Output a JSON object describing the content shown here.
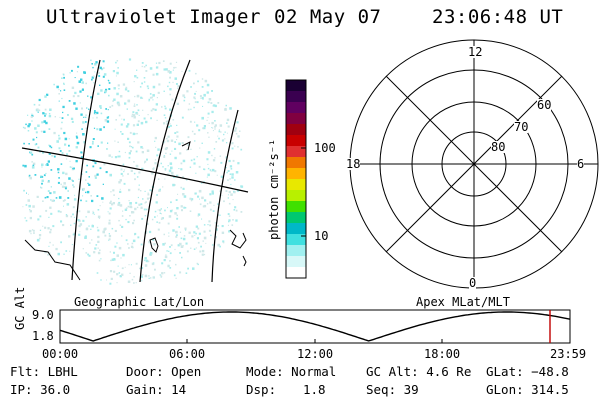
{
  "header": {
    "instrument": "Ultraviolet Imager",
    "date": "02 May 07",
    "time": "23:06:48 UT"
  },
  "colorbar": {
    "units_label": "photon cm⁻²s⁻¹",
    "ticks": [
      "100",
      "10"
    ],
    "colors": [
      "#1a0033",
      "#3a0050",
      "#600060",
      "#800040",
      "#a00010",
      "#c80000",
      "#e03030",
      "#f07800",
      "#ffb400",
      "#e8e800",
      "#b8f000",
      "#40e000",
      "#00c870",
      "#00b8c8",
      "#40e0e0",
      "#a0f0f0",
      "#d8f8f8",
      "#ffffff"
    ]
  },
  "map_left": {
    "caption": "Geographic Lat/Lon",
    "point_color": "#40d0e0"
  },
  "polar_right": {
    "caption": "Apex MLat/MLT",
    "mlt_labels": {
      "top": "12",
      "left": "18",
      "right": "6",
      "bottom": "0"
    },
    "mlat_labels": [
      "60",
      "70",
      "80"
    ]
  },
  "altitude_strip": {
    "ylabel": "GC Alt",
    "ymax_label": "9.0",
    "ymin_label": "1.8",
    "time_ticks": [
      "00:00",
      "06:00",
      "12:00",
      "18:00",
      "23:59"
    ],
    "marker_color": "#c00000"
  },
  "footer": {
    "flt": "Flt: LBHL",
    "ip": "IP: 36.0",
    "door": "Door: Open",
    "gain": "Gain: 14",
    "mode": "Mode: Normal",
    "dsp_label": "Dsp:",
    "dsp_value": "1.8",
    "gcalt": "GC Alt: 4.6 Re",
    "seq": "Seq: 39",
    "glat": "GLat: −48.8",
    "glon": "GLon: 314.5"
  }
}
